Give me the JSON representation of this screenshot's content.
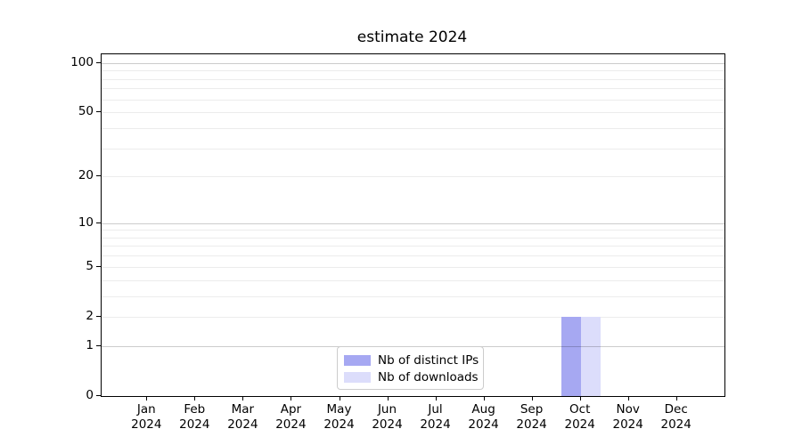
{
  "chart_data": {
    "type": "bar",
    "title": "estimate 2024",
    "categories": [
      "Jan 2024",
      "Feb 2024",
      "Mar 2024",
      "Apr 2024",
      "May 2024",
      "Jun 2024",
      "Jul 2024",
      "Aug 2024",
      "Sep 2024",
      "Oct 2024",
      "Nov 2024",
      "Dec 2024"
    ],
    "series": [
      {
        "name": "Nb of distinct IPs",
        "color": "#a6a8f2",
        "values": [
          0,
          0,
          0,
          0,
          0,
          0,
          0,
          0,
          0,
          2,
          0,
          0
        ]
      },
      {
        "name": "Nb of downloads",
        "color": "#dcddfb",
        "values": [
          0,
          0,
          0,
          0,
          0,
          0,
          0,
          0,
          0,
          2,
          0,
          0
        ]
      }
    ],
    "yscale": "log1p",
    "ylim": [
      0,
      113
    ],
    "ytick_values": [
      0,
      1,
      2,
      5,
      10,
      20,
      50,
      100
    ],
    "major_gridline_values": [
      1,
      10,
      100
    ],
    "minor_gridline_values": [
      2,
      3,
      4,
      5,
      6,
      7,
      8,
      9,
      20,
      30,
      40,
      50,
      60,
      70,
      80,
      90
    ],
    "grid": true,
    "legend_location": "lower center",
    "colors": {
      "axis": "#000000",
      "text": "#000000",
      "major_grid": "rgba(0,0,0,0.20)",
      "minor_grid": "rgba(0,0,0,0.075)",
      "background": "#ffffff"
    }
  }
}
